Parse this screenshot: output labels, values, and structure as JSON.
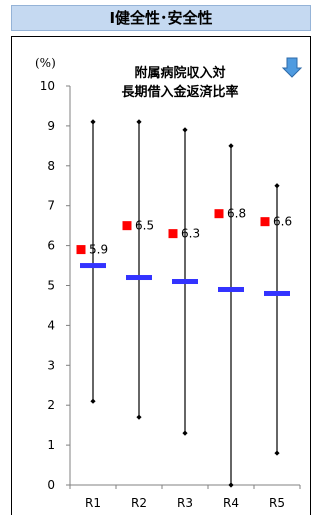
{
  "header": {
    "title": "Ⅰ健全性･安全性"
  },
  "chart_data": {
    "type": "range_marker",
    "title_line1": "附属病院収入対",
    "title_line2": "長期借入金返済比率",
    "unit": "(%)",
    "trend_icon": "arrow-down-icon",
    "ylim": [
      0,
      10
    ],
    "yticks": [
      0,
      1,
      2,
      3,
      4,
      5,
      6,
      7,
      8,
      9,
      10
    ],
    "categories": [
      "R1",
      "R2",
      "R3",
      "R4",
      "R5"
    ],
    "max": [
      9.1,
      9.1,
      8.9,
      8.5,
      7.5
    ],
    "min": [
      2.1,
      1.7,
      1.3,
      0.0,
      0.8
    ],
    "average": [
      5.5,
      5.2,
      5.1,
      4.9,
      4.8
    ],
    "values": [
      5.9,
      6.5,
      6.3,
      6.8,
      6.6
    ],
    "value_labels": [
      "5.9",
      "6.5",
      "6.3",
      "6.8",
      "6.6"
    ],
    "colors": {
      "value_marker": "#ff0000",
      "average_bar": "#3333ff",
      "header_bg": "#c5d9f1",
      "arrow": "#4f9be0"
    }
  }
}
